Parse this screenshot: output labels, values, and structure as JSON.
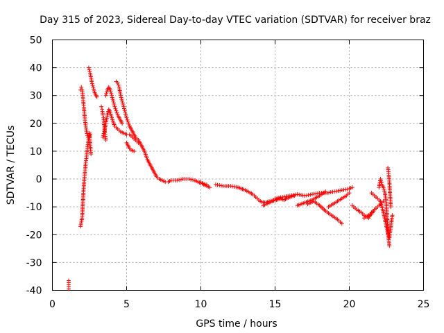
{
  "chart_data": {
    "type": "scatter",
    "title": "Day 315 of 2023, Sidereal Day-to-day VTEC variation (SDTVAR) for receiver braz",
    "xlabel": "GPS time / hours",
    "ylabel": "SDTVAR / TECUs",
    "xlim": [
      0,
      25
    ],
    "ylim": [
      -40,
      50
    ],
    "grid": true,
    "marker": "+",
    "color": "#ff0000",
    "xticks": [
      "0",
      "5",
      "10",
      "15",
      "20",
      "25"
    ],
    "yticks": [
      "-40",
      "-30",
      "-20",
      "-10",
      "0",
      "10",
      "20",
      "30",
      "40",
      "50"
    ],
    "segments": [
      {
        "x": [
          1.1,
          1.1,
          1.1
        ],
        "y": [
          -36.5,
          -38,
          -39.5
        ]
      },
      {
        "x": [
          1.9,
          2.0,
          2.05,
          2.1,
          2.15,
          2.2,
          2.25,
          2.3,
          2.35,
          2.4,
          2.45,
          2.5,
          2.55,
          2.6
        ],
        "y": [
          -17,
          -14,
          -9,
          -4,
          0,
          3,
          6,
          8,
          11,
          13,
          15,
          16.5,
          12,
          9
        ]
      },
      {
        "x": [
          1.9,
          1.95,
          2.0,
          2.05,
          2.1,
          2.15,
          2.2,
          2.25,
          2.3,
          2.4,
          2.5,
          2.55
        ],
        "y": [
          32,
          33,
          32,
          30,
          27,
          24,
          21,
          19,
          17,
          15,
          15.5,
          16
        ]
      },
      {
        "x": [
          2.45,
          2.55,
          2.65,
          2.75,
          2.85,
          2.95,
          3.0
        ],
        "y": [
          40,
          38,
          35,
          33,
          31,
          30,
          29.5
        ]
      },
      {
        "x": [
          3.3,
          3.35,
          3.4,
          3.45,
          3.5,
          3.55,
          3.6
        ],
        "y": [
          26,
          25,
          23,
          22,
          19,
          16,
          14
        ]
      },
      {
        "x": [
          3.4,
          3.5,
          3.6,
          3.7,
          3.8,
          3.9,
          4.0,
          4.2,
          4.4,
          4.6,
          4.8,
          5.0,
          5.2,
          5.4,
          5.6,
          5.8
        ],
        "y": [
          15,
          17,
          20,
          23,
          25,
          24,
          22,
          19,
          18,
          17,
          16.5,
          16,
          16,
          15,
          14,
          13
        ]
      },
      {
        "x": [
          3.6,
          3.7,
          3.8,
          3.9,
          4.0,
          4.1,
          4.2,
          4.3,
          4.4,
          4.5,
          4.6,
          4.7
        ],
        "y": [
          30,
          32,
          33,
          32,
          30,
          28,
          26,
          24.5,
          23,
          22,
          21,
          20
        ]
      },
      {
        "x": [
          4.3,
          4.4,
          4.5,
          4.6,
          4.7,
          4.8,
          4.9,
          5.0,
          5.1,
          5.2
        ],
        "y": [
          35,
          34.5,
          33,
          30,
          28,
          26,
          24,
          22,
          20.5,
          19
        ]
      },
      {
        "x": [
          5.0,
          5.1,
          5.2,
          5.3,
          5.5
        ],
        "y": [
          13,
          12,
          11,
          10.5,
          10
        ]
      },
      {
        "x": [
          5.2,
          5.4,
          5.6,
          5.8,
          6.0,
          6.2,
          6.4,
          6.6,
          6.8,
          7.0,
          7.2,
          7.4,
          7.6,
          7.8,
          8.0,
          8.4,
          8.8,
          9.2,
          9.6,
          10.0,
          10.4
        ],
        "y": [
          19,
          17,
          15,
          14,
          12,
          10,
          7,
          5,
          3,
          1,
          0,
          -0.5,
          -1,
          -1,
          -0.5,
          -0.5,
          0,
          0,
          -0.5,
          -1.5,
          -2
        ]
      },
      {
        "x": [
          10.0,
          10.2,
          10.4,
          10.6
        ],
        "y": [
          -1,
          -2,
          -2.5,
          -3
        ]
      },
      {
        "x": [
          11.0,
          11.5,
          12.0,
          12.5,
          13.0,
          13.5,
          13.8,
          14.0,
          14.3,
          14.6,
          15.0,
          15.3,
          15.6,
          16.0,
          16.3
        ],
        "y": [
          -2,
          -2.5,
          -2.5,
          -3,
          -4,
          -5.5,
          -7,
          -8,
          -8.5,
          -8,
          -7.5,
          -7,
          -7.5,
          -6.5,
          -6
        ]
      },
      {
        "x": [
          14.2,
          14.5,
          14.8,
          15.1,
          15.4
        ],
        "y": [
          -9.5,
          -8.8,
          -8,
          -7.5,
          -7
        ]
      },
      {
        "x": [
          15.0,
          15.5,
          16.0,
          16.5,
          17.0,
          17.5,
          18.0,
          18.5,
          19.0,
          19.5,
          20.0,
          20.2
        ],
        "y": [
          -7,
          -6.5,
          -6,
          -5.5,
          -6,
          -5.5,
          -5,
          -5,
          -4.5,
          -4,
          -3.5,
          -3
        ]
      },
      {
        "x": [
          16.5,
          17.0,
          17.5,
          18.0,
          18.4
        ],
        "y": [
          -9.5,
          -8.5,
          -7.5,
          -6,
          -4.5
        ]
      },
      {
        "x": [
          17.2,
          17.6,
          18.0,
          18.4,
          18.8,
          19.2,
          19.5
        ],
        "y": [
          -9,
          -8,
          -9.5,
          -11.5,
          -13,
          -14.5,
          -16
        ]
      },
      {
        "x": [
          18.6,
          18.9,
          19.2,
          19.5,
          19.8,
          20.0
        ],
        "y": [
          -10,
          -9,
          -8,
          -7,
          -6,
          -5
        ]
      },
      {
        "x": [
          20.2,
          20.5,
          20.8,
          21.0,
          21.3,
          21.5,
          21.7
        ],
        "y": [
          -9.5,
          -11,
          -12,
          -13,
          -14,
          -12,
          -11
        ]
      },
      {
        "x": [
          21.0,
          21.3,
          21.5,
          21.7,
          21.9,
          22.1,
          22.3
        ],
        "y": [
          -14,
          -13,
          -12.5,
          -11,
          -10,
          -9,
          -8
        ]
      },
      {
        "x": [
          21.5,
          21.7,
          21.9,
          22.1,
          22.3,
          22.5,
          22.7,
          22.9
        ],
        "y": [
          -5,
          -6,
          -7,
          -8,
          -12,
          -17,
          -21,
          -13
        ]
      },
      {
        "x": [
          22.0,
          22.1,
          22.2,
          22.3,
          22.4,
          22.5,
          22.6,
          22.7
        ],
        "y": [
          -3,
          0,
          -2,
          -3,
          -5,
          -9,
          -19,
          -24
        ]
      },
      {
        "x": [
          22.6,
          22.65,
          22.7,
          22.75,
          22.8
        ],
        "y": [
          4,
          2,
          -1,
          -6,
          -10
        ]
      }
    ]
  }
}
